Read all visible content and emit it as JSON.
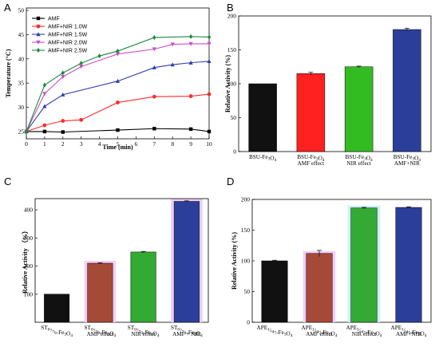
{
  "chart_data": [
    {
      "panel": "A",
      "type": "line",
      "xlabel": "Time (min)",
      "ylabel": "Temperature (°C)",
      "xlim": [
        0,
        10
      ],
      "ylim": [
        23.5,
        50.5
      ],
      "xticks": [
        0,
        1,
        2,
        3,
        4,
        5,
        6,
        7,
        8,
        9,
        10
      ],
      "yticks": [
        25,
        30,
        35,
        40,
        45,
        50
      ],
      "legend_position": "top-left",
      "series": [
        {
          "name": "AMF",
          "color": "#000000",
          "marker": "square",
          "x": [
            0,
            1,
            2,
            5,
            7,
            9,
            10
          ],
          "y": [
            25.0,
            25.0,
            24.9,
            25.3,
            25.6,
            25.5,
            25.0
          ]
        },
        {
          "name": "AMF+NIR 1.0W",
          "color": "#ff2a2a",
          "marker": "circle",
          "x": [
            0,
            1,
            2,
            3,
            5,
            7,
            9,
            10
          ],
          "y": [
            25.0,
            26.3,
            27.2,
            27.4,
            31.0,
            32.2,
            32.3,
            32.7
          ]
        },
        {
          "name": "AMF+NIR 1.5W",
          "color": "#2b3fa8",
          "marker": "triangle",
          "x": [
            0,
            1,
            2,
            5,
            7,
            8,
            9,
            10
          ],
          "y": [
            25.0,
            30.2,
            32.6,
            35.4,
            38.2,
            38.8,
            39.2,
            39.5
          ]
        },
        {
          "name": "AMF+NIR 2.0W",
          "color": "#c84fc8",
          "marker": "triangle-down",
          "x": [
            0,
            1,
            2,
            3,
            5,
            7,
            8,
            9,
            10
          ],
          "y": [
            25.0,
            32.8,
            36.3,
            38.4,
            41.0,
            42.0,
            43.0,
            43.1,
            43.1
          ]
        },
        {
          "name": "AMF+NIR 2.5W",
          "color": "#1e8a3c",
          "marker": "diamond",
          "x": [
            0,
            1,
            2,
            3,
            4,
            5,
            7,
            9,
            10
          ],
          "y": [
            25.0,
            34.6,
            37.1,
            39.1,
            40.6,
            41.6,
            44.4,
            44.6,
            44.5
          ]
        }
      ]
    },
    {
      "panel": "B",
      "type": "bar",
      "ylabel": "Relative Activity (%)",
      "ylim": [
        0,
        200
      ],
      "yticks": [
        0,
        50,
        100,
        150,
        200
      ],
      "categories": [
        [
          "BSU-Fe3O4"
        ],
        [
          "BSU-Fe3O4",
          "AMF effect"
        ],
        [
          "BSU-Fe3O4",
          "NIR effect"
        ],
        [
          "BSU-Fe3O4",
          "AMF+NIR"
        ]
      ],
      "values": [
        100,
        115,
        125,
        180
      ],
      "errors": [
        0,
        2,
        1,
        2
      ],
      "colors": [
        "#111111",
        "#ff2020",
        "#33bb22",
        "#2b3f9a"
      ]
    },
    {
      "panel": "C",
      "type": "bar",
      "ylabel": "Relative Activity （%）",
      "ylim": [
        0,
        440
      ],
      "yticks": [
        100,
        200,
        300,
        400
      ],
      "categories": [
        [
          "ST0779-Fe3O4"
        ],
        [
          "ST0779-Fe3O4",
          "AMF  effect"
        ],
        [
          "ST0779-Fe3O4",
          "NIR  effect"
        ],
        [
          "ST0779-Fe3O4",
          "AMF + NIR"
        ]
      ],
      "values": [
        100,
        210,
        250,
        430
      ],
      "errors": [
        0,
        2,
        2,
        2
      ],
      "colors": [
        "#111111",
        "#a64a38",
        "#33aa33",
        "#2b3f9a"
      ],
      "highlight_colors": [
        null,
        "#f4ccf4",
        null,
        "#e8ccf4"
      ]
    },
    {
      "panel": "D",
      "type": "bar",
      "ylabel": "Relative Activity (%)",
      "ylim": [
        0,
        200
      ],
      "yticks": [
        0,
        50,
        100,
        150,
        200
      ],
      "categories": [
        [
          "APE1547-Fe3O4"
        ],
        [
          "APE1547-Fe3O4",
          "AMF effect"
        ],
        [
          "APE1547-Fe3O4",
          "NIR effect"
        ],
        [
          "APE1547-Fe3O4",
          "AMF+NIR"
        ]
      ],
      "values": [
        100,
        112,
        186,
        187
      ],
      "errors": [
        1,
        5,
        1,
        1
      ],
      "colors": [
        "#111111",
        "#a64a38",
        "#33aa33",
        "#2b3f9a"
      ],
      "highlight_colors": [
        null,
        "#f4ccf4",
        "#c8f0f4",
        null
      ]
    }
  ]
}
